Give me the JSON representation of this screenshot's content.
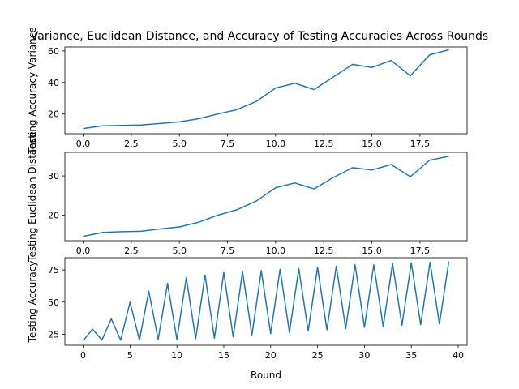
{
  "figure": {
    "title": "Variance, Euclidean Distance, and Accuracy of Testing Accuracies Across Rounds",
    "line_color": "#1f77b4"
  },
  "chart_data": [
    {
      "type": "line",
      "ylabel": "Testing Accuracy Variance",
      "xlabel": "",
      "xlim": [
        -0.95,
        19.95
      ],
      "ylim": [
        7.5,
        62.5
      ],
      "xticks": [
        0,
        2.5,
        5,
        7.5,
        10,
        12.5,
        15,
        17.5
      ],
      "xtick_labels": [
        "0.0",
        "2.5",
        "5.0",
        "7.5",
        "10.0",
        "12.5",
        "15.0",
        "17.5"
      ],
      "yticks": [
        20,
        40,
        60
      ],
      "ytick_labels": [
        "20",
        "40",
        "60"
      ],
      "x": [
        0,
        1,
        2,
        3,
        4,
        5,
        6,
        7,
        8,
        9,
        10,
        11,
        12,
        13,
        14,
        15,
        16,
        17,
        18,
        19
      ],
      "series": [
        {
          "values": [
            10.8,
            12.5,
            12.8,
            13.0,
            14.0,
            15.0,
            17.0,
            20.0,
            22.8,
            28.0,
            36.5,
            39.5,
            35.5,
            43.5,
            51.5,
            49.5,
            54.0,
            44.2,
            57.5,
            60.7
          ]
        }
      ]
    },
    {
      "type": "line",
      "ylabel": "Testing Euclidean Distance",
      "xlabel": "",
      "xlim": [
        -0.95,
        19.95
      ],
      "ylim": [
        13.5,
        36.0
      ],
      "xticks": [
        0,
        2.5,
        5,
        7.5,
        10,
        12.5,
        15,
        17.5
      ],
      "xtick_labels": [
        "0.0",
        "2.5",
        "5.0",
        "7.5",
        "10.0",
        "12.5",
        "15.0",
        "17.5"
      ],
      "yticks": [
        20,
        30
      ],
      "ytick_labels": [
        "20",
        "30"
      ],
      "x": [
        0,
        1,
        2,
        3,
        4,
        5,
        6,
        7,
        8,
        9,
        10,
        11,
        12,
        13,
        14,
        15,
        16,
        17,
        18,
        19
      ],
      "series": [
        {
          "values": [
            14.6,
            15.6,
            15.8,
            15.9,
            16.5,
            17.0,
            18.2,
            20.0,
            21.4,
            23.6,
            27.0,
            28.2,
            26.7,
            29.6,
            32.1,
            31.5,
            32.9,
            29.8,
            34.0,
            35.0
          ]
        }
      ]
    },
    {
      "type": "line",
      "ylabel": "Testing Accuracy",
      "xlabel": "Round",
      "xlim": [
        -1.95,
        40.95
      ],
      "ylim": [
        16.5,
        84.5
      ],
      "xticks": [
        0,
        5,
        10,
        15,
        20,
        25,
        30,
        35,
        40
      ],
      "xtick_labels": [
        "0",
        "5",
        "10",
        "15",
        "20",
        "25",
        "30",
        "35",
        "40"
      ],
      "yticks": [
        25,
        50,
        75
      ],
      "ytick_labels": [
        "25",
        "50",
        "75"
      ],
      "x": [
        0,
        1,
        2,
        3,
        4,
        5,
        6,
        7,
        8,
        9,
        10,
        11,
        12,
        13,
        14,
        15,
        16,
        17,
        18,
        19,
        20,
        21,
        22,
        23,
        24,
        25,
        26,
        27,
        28,
        29,
        30,
        31,
        32,
        33,
        34,
        35,
        36,
        37,
        38,
        39
      ],
      "series": [
        {
          "values": [
            20.0,
            29.0,
            20.5,
            37.0,
            20.5,
            50.0,
            20.5,
            58.5,
            21.0,
            64.5,
            21.0,
            69.0,
            21.5,
            71.0,
            22.0,
            73.0,
            23.0,
            73.5,
            24.5,
            74.5,
            25.5,
            75.5,
            26.5,
            76.0,
            27.5,
            77.0,
            28.5,
            78.0,
            29.5,
            79.0,
            30.5,
            79.0,
            31.0,
            80.0,
            32.0,
            80.5,
            32.5,
            81.0,
            33.0,
            81.5
          ]
        }
      ]
    }
  ]
}
